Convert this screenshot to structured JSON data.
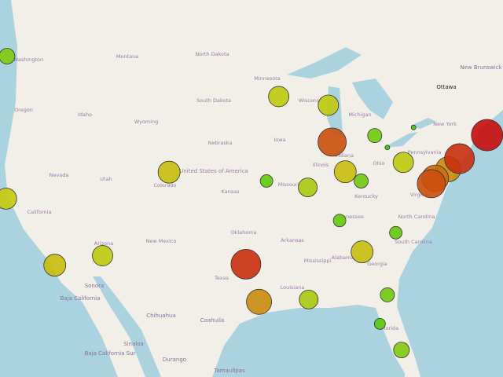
{
  "labels": {
    "states": [
      "Washington",
      "Oregon",
      "Idaho",
      "Montana",
      "Wyoming",
      "North Dakota",
      "South Dakota",
      "Nebraska",
      "Kansas",
      "Nevada",
      "California",
      "Utah",
      "Colorado",
      "Arizona",
      "New Mexico",
      "Texas",
      "Oklahoma",
      "Missouri",
      "Iowa",
      "Minnesota",
      "Wisconsin",
      "Illinois",
      "Arkansas",
      "Louisiana",
      "Mississippi",
      "Alabama",
      "Georgia",
      "Tennessee",
      "Kentucky",
      "Ohio",
      "Indiana",
      "Michigan",
      "North Carolina",
      "South Carolina",
      "Florida",
      "Virginia",
      "Pennsylvania",
      "New York",
      "Sonora",
      "Chihuahua",
      "Coahuila",
      "Baja California",
      "Baja California Sur",
      "Sinaloa",
      "Durango",
      "Tamaulipas",
      "New Brunswick"
    ],
    "country": "United States of America",
    "capital": "Ottawa"
  },
  "markers": [
    {
      "lat": 47.6,
      "lon": -122.3,
      "value": 100
    },
    {
      "lat": 37.8,
      "lon": -122.4,
      "value": 180
    },
    {
      "lat": 32.7,
      "lon": -117.2,
      "value": 196
    },
    {
      "lat": 33.45,
      "lon": -112.1,
      "value": 169
    },
    {
      "lat": 39.74,
      "lon": -105.0,
      "value": 196
    },
    {
      "lat": 32.78,
      "lon": -96.8,
      "value": 361
    },
    {
      "lat": 29.76,
      "lon": -95.4,
      "value": 256
    },
    {
      "lat": 44.98,
      "lon": -93.3,
      "value": 169
    },
    {
      "lat": 44.4,
      "lon": -88.0,
      "value": 169
    },
    {
      "lat": 41.88,
      "lon": -87.6,
      "value": 324
    },
    {
      "lat": 42.33,
      "lon": -83.05,
      "value": 81
    },
    {
      "lat": 39.1,
      "lon": -94.6,
      "value": 64
    },
    {
      "lat": 38.63,
      "lon": -90.2,
      "value": 144
    },
    {
      "lat": 39.77,
      "lon": -86.2,
      "value": 196
    },
    {
      "lat": 39.1,
      "lon": -84.5,
      "value": 81
    },
    {
      "lat": 40.44,
      "lon": -80.0,
      "value": 169
    },
    {
      "lat": 36.16,
      "lon": -86.8,
      "value": 64
    },
    {
      "lat": 33.75,
      "lon": -84.4,
      "value": 196
    },
    {
      "lat": 35.23,
      "lon": -80.8,
      "value": 64
    },
    {
      "lat": 29.95,
      "lon": -90.1,
      "value": 144
    },
    {
      "lat": 30.33,
      "lon": -81.7,
      "value": 81
    },
    {
      "lat": 27.95,
      "lon": -82.5,
      "value": 49
    },
    {
      "lat": 25.76,
      "lon": -80.2,
      "value": 100
    },
    {
      "lat": 42.89,
      "lon": -78.9,
      "value": 9
    },
    {
      "lat": 41.5,
      "lon": -81.7,
      "value": 9
    },
    {
      "lat": 38.9,
      "lon": -77.0,
      "value": 324
    },
    {
      "lat": 39.29,
      "lon": -76.6,
      "value": 289
    },
    {
      "lat": 39.95,
      "lon": -75.2,
      "value": 256
    },
    {
      "lat": 40.71,
      "lon": -74.0,
      "value": 361
    },
    {
      "lat": 42.36,
      "lon": -71.06,
      "value": 400
    }
  ]
}
